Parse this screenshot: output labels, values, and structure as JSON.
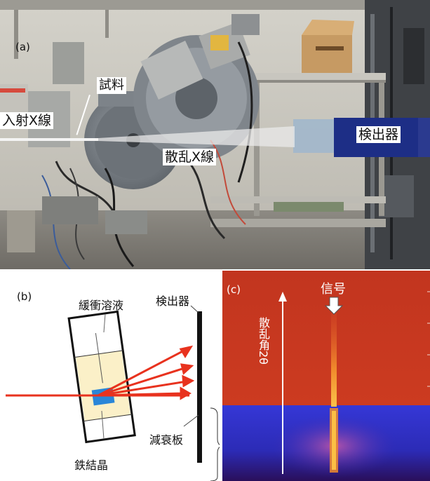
{
  "panel_a": {
    "tag": "(a)",
    "labels": {
      "sample": "試料",
      "incident": "入射X線",
      "scattered": "散乱X線",
      "detector": "検出器"
    }
  },
  "panel_b": {
    "tag": "(b)",
    "labels": {
      "buffer": "緩衝溶液",
      "detector": "検出器",
      "attenuator": "減衰板",
      "crystal": "鉄結晶"
    },
    "colors": {
      "beam": "#e8321e",
      "crystal": "#2a86d8",
      "solution": "#fbf0c8"
    }
  },
  "panel_c": {
    "tag": "(c)",
    "signal_label": "信号",
    "axis_label": "散乱角2θ",
    "colors": {
      "top": "#c7311f",
      "bottom": "#2d2fcf",
      "streak": "#f7a030"
    }
  }
}
